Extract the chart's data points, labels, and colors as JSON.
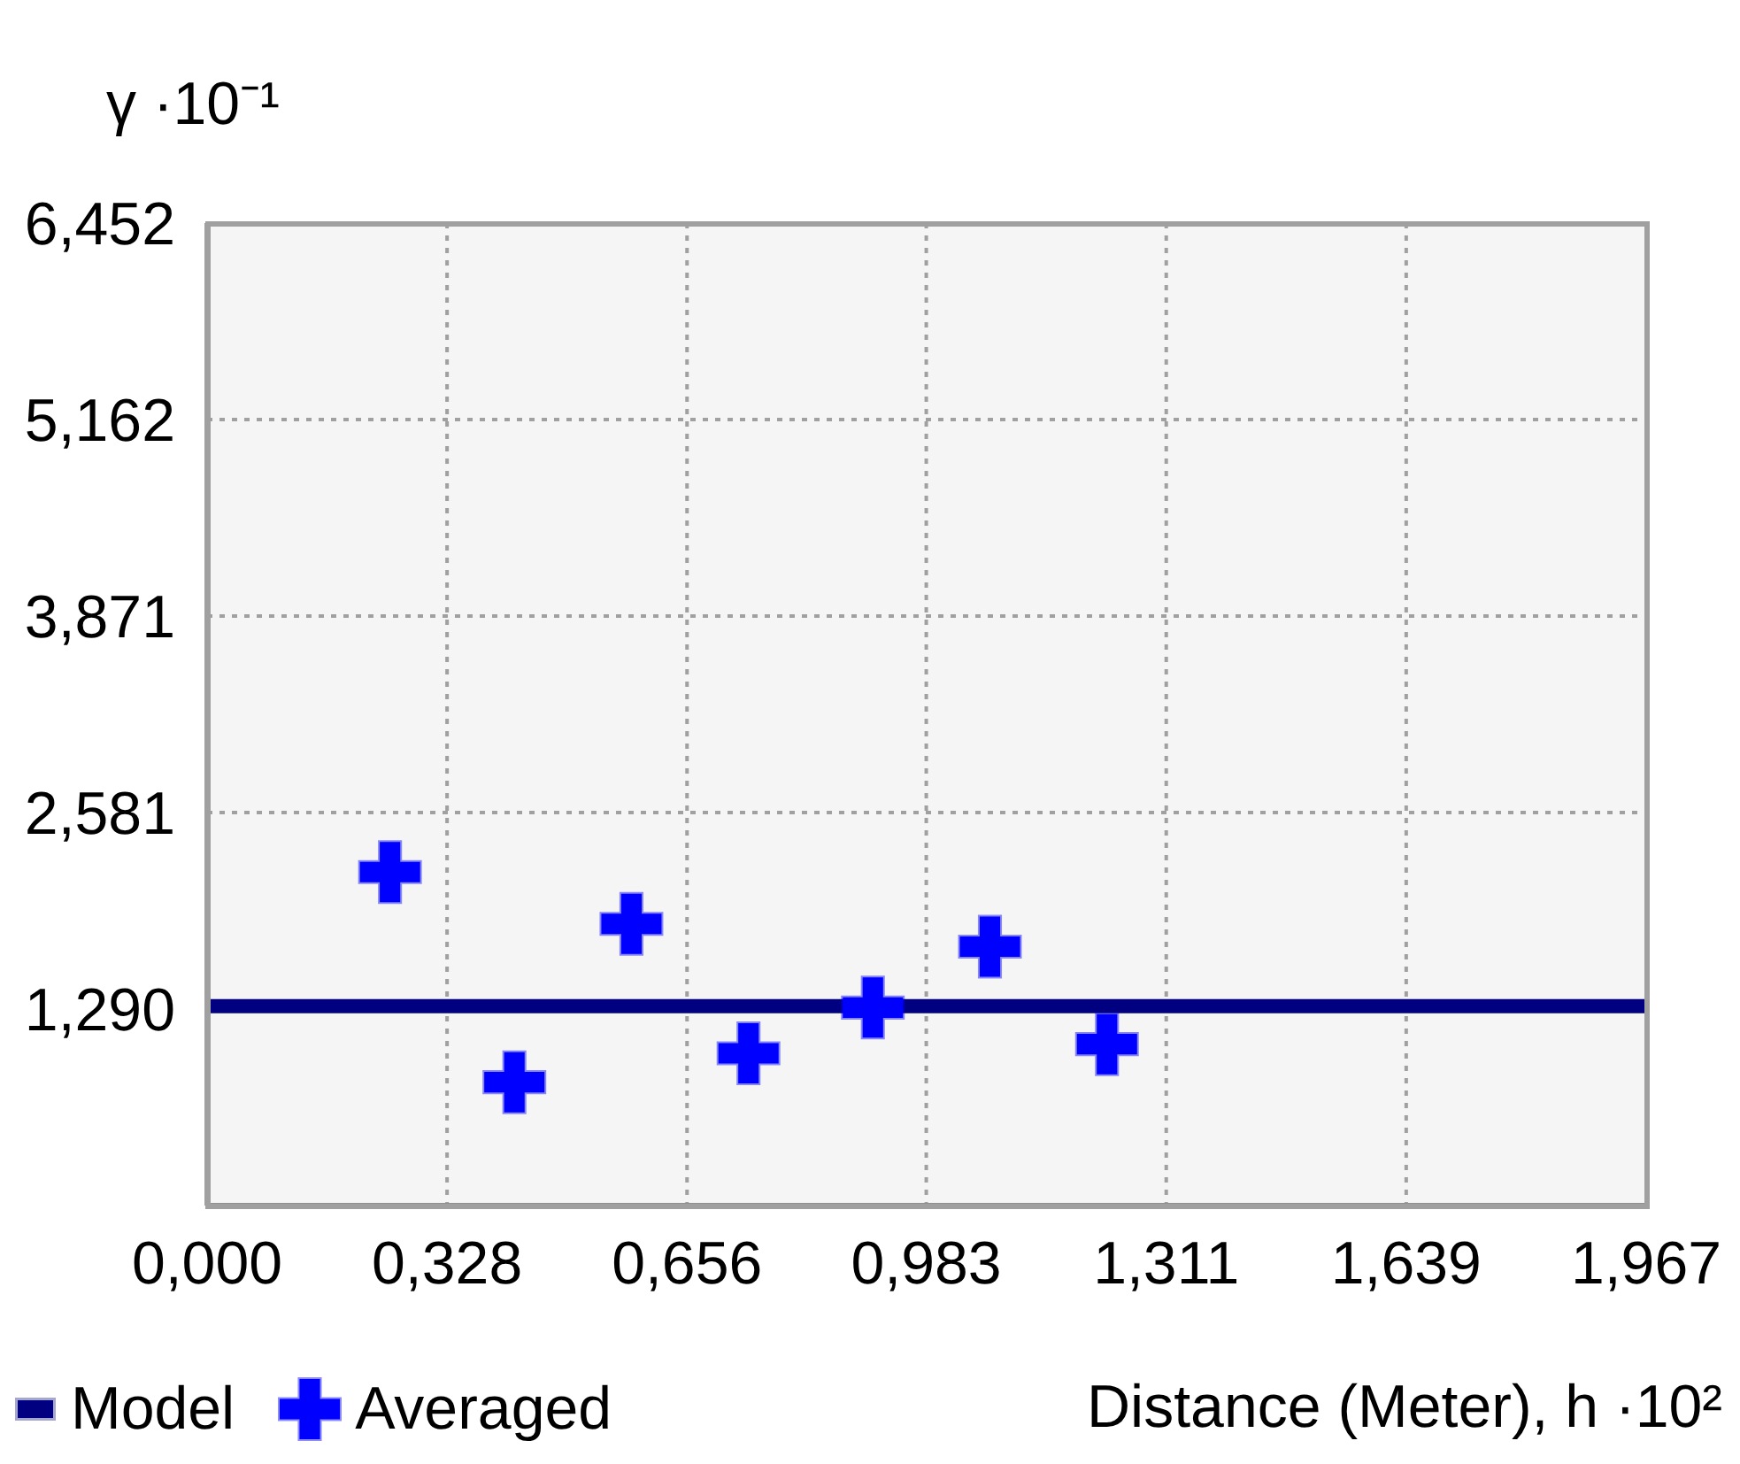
{
  "chart_data": {
    "type": "scatter",
    "xlabel": "Distance (Meter), h ·10²",
    "ylabel": "γ ·10⁻¹",
    "xlim": [
      0,
      1.967
    ],
    "xticks": [
      {
        "value": 0,
        "label": "0,000"
      },
      {
        "value": 0.328,
        "label": "0,328"
      },
      {
        "value": 0.656,
        "label": "0,656"
      },
      {
        "value": 0.983,
        "label": "0,983"
      },
      {
        "value": 1.311,
        "label": "1,311"
      },
      {
        "value": 1.639,
        "label": "1,639"
      },
      {
        "value": 1.967,
        "label": "1,967"
      }
    ],
    "ylim": [
      0,
      6.452
    ],
    "yticks": [
      {
        "value": 0,
        "label": null
      },
      {
        "value": 1.29,
        "label": "1,290"
      },
      {
        "value": 2.581,
        "label": "2,581"
      },
      {
        "value": 3.871,
        "label": "3,871"
      },
      {
        "value": 5.162,
        "label": "5,162"
      },
      {
        "value": 6.452,
        "label": "6,452"
      }
    ],
    "grid": true,
    "legend": "bottom left",
    "series": [
      {
        "name": "Model",
        "type": "line",
        "color": "#000080",
        "marker": "none",
        "line_style": "solid",
        "x": [
          0,
          1.967
        ],
        "values": [
          1.31,
          1.31
        ]
      },
      {
        "name": "Averaged",
        "color": "#0000ff",
        "marker": "cross",
        "x": [
          0.25,
          0.42,
          0.58,
          0.74,
          0.91,
          1.07,
          1.23
        ],
        "values": [
          2.19,
          0.81,
          1.85,
          1.0,
          1.3,
          1.7,
          1.06
        ]
      }
    ]
  }
}
